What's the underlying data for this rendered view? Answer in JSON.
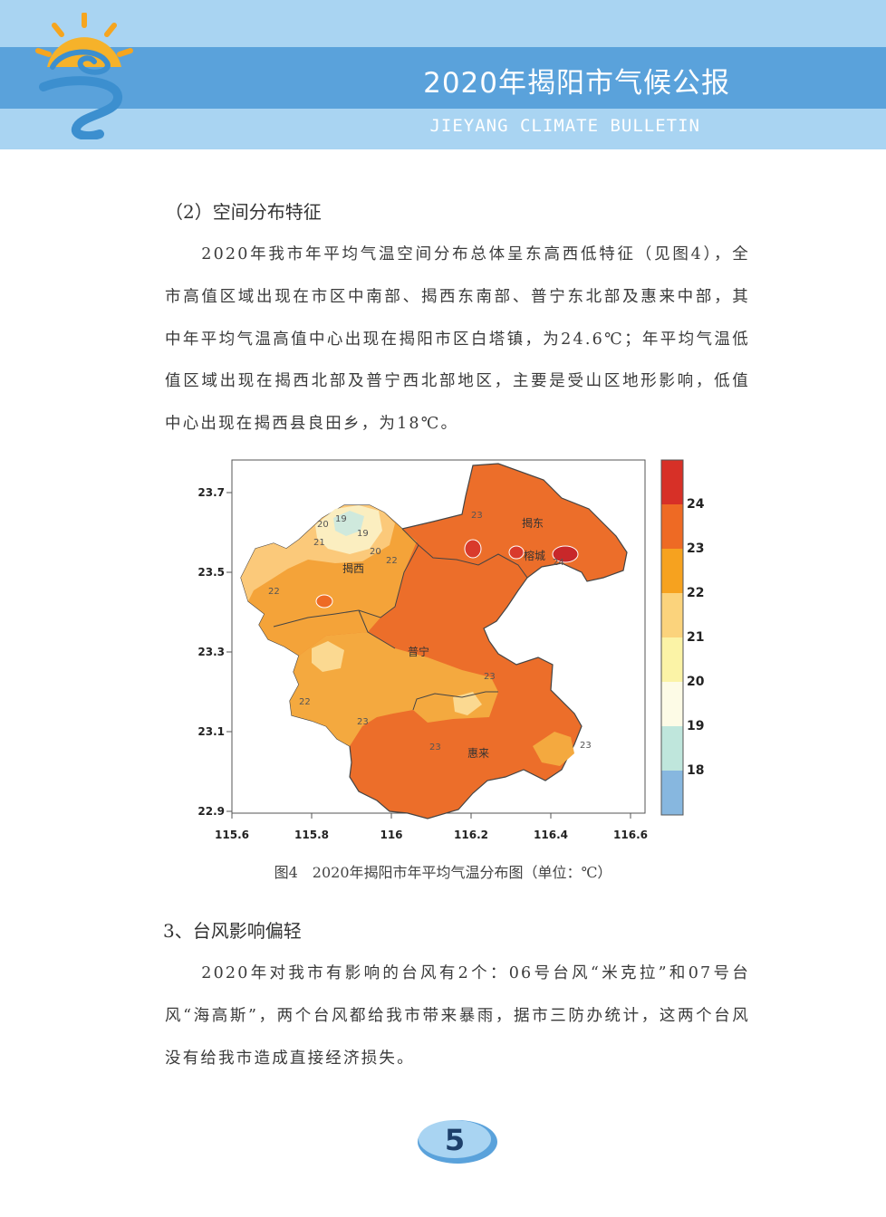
{
  "header": {
    "title": "2020年揭阳市气候公报",
    "subtitle": "JIEYANG CLIMATE BULLETIN",
    "logo_icon": "sun-wave-logo-icon"
  },
  "section": {
    "title": "（2）空间分布特征",
    "paragraph": "2020年我市年平均气温空间分布总体呈东高西低特征（见图4），全市高值区域出现在市区中南部、揭西东南部、普宁东北部及惠来中部，其中年平均气温高值中心出现在揭阳市区白塔镇，为24.6℃；年平均气温低值区域出现在揭西北部及普宁西北部地区，主要是受山区地形影响，低值中心出现在揭西县良田乡，为18℃。"
  },
  "figure": {
    "caption": "图4　2020年揭阳市年平均气温分布图（单位：℃）",
    "x_ticks": [
      "115.6",
      "115.8",
      "116",
      "116.2",
      "116.4",
      "116.6"
    ],
    "y_ticks": [
      "23.7",
      "23.5",
      "23.3",
      "23.1",
      "22.9"
    ],
    "place_labels": [
      "揭东",
      "榕城",
      "揭西",
      "普宁",
      "惠来"
    ],
    "contour_labels": [
      "18",
      "19",
      "20",
      "21",
      "22",
      "23",
      "24"
    ],
    "colorbar_ticks": [
      "24",
      "23",
      "22",
      "21",
      "20",
      "19",
      "18"
    ],
    "colorbar_colors": [
      "#d73027",
      "#ee6a24",
      "#f6a21f",
      "#fbd37c",
      "#fbf3a6",
      "#fdfbe6",
      "#bfe6dc",
      "#87b7df"
    ]
  },
  "typhoon": {
    "title": "3、台风影响偏轻",
    "paragraph": "2020年对我市有影响的台风有2个：06号台风“米克拉”和07号台风“海高斯”，两个台风都给我市带来暴雨，据市三防办统计，这两个台风没有给我市造成直接经济损失。"
  },
  "page_number": "5",
  "colors": {
    "header_light": "#a9d4f2",
    "header_band": "#5aa2db",
    "map_high": "#e8622a",
    "map_low": "#f9f1b8"
  }
}
